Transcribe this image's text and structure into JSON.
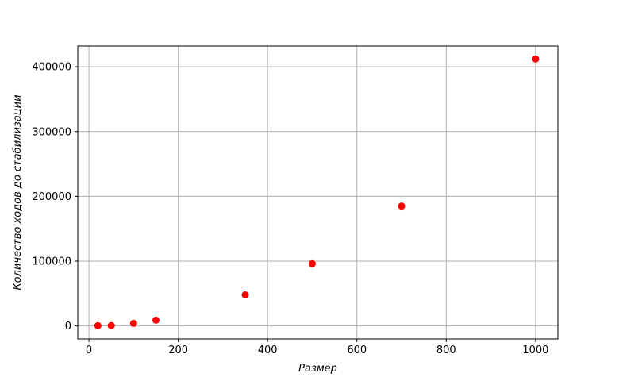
{
  "chart_data": {
    "type": "scatter",
    "title": "",
    "xlabel": "Размер",
    "ylabel": "Количество ходов до стабилизации",
    "xlim": [
      -25,
      1050
    ],
    "ylim": [
      -20000,
      432000
    ],
    "xticks": [
      0,
      200,
      400,
      600,
      800,
      1000
    ],
    "yticks": [
      0,
      100000,
      200000,
      300000,
      400000
    ],
    "grid": true,
    "marker_color": "#ff0000",
    "series": [
      {
        "points": [
          {
            "x": 20,
            "y": 400
          },
          {
            "x": 50,
            "y": 600
          },
          {
            "x": 100,
            "y": 4000
          },
          {
            "x": 150,
            "y": 9000
          },
          {
            "x": 350,
            "y": 48000
          },
          {
            "x": 500,
            "y": 96000
          },
          {
            "x": 700,
            "y": 185000
          },
          {
            "x": 1000,
            "y": 412000
          }
        ]
      }
    ]
  }
}
